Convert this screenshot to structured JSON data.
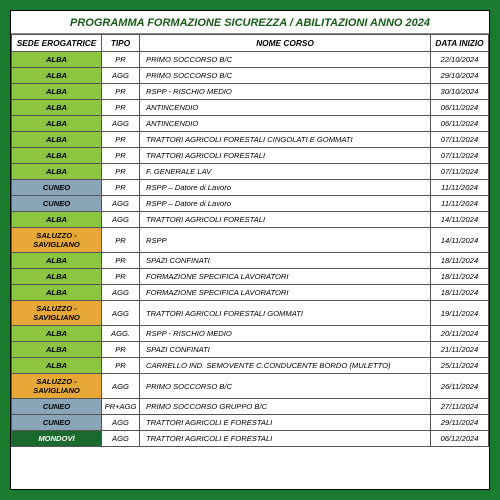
{
  "title": "PROGRAMMA FORMAZIONE SICUREZZA / ABILITAZIONI ANNO 2024",
  "columns": [
    "SEDE EROGATRICE",
    "TIPO",
    "NOME CORSO",
    "DATA INIZIO"
  ],
  "sede_colors": {
    "ALBA": "#8cc640",
    "CUNEO": "#8aa4b8",
    "SALUZZO - SAVIGLIANO": "#e8a838",
    "MONDOVÌ": "#1a6a2e"
  },
  "mondovi_text_color": "#ffffff",
  "rows": [
    {
      "sede": "ALBA",
      "tipo": "PR",
      "nome": "PRIMO SOCCORSO B/C",
      "data": "22/10/2024"
    },
    {
      "sede": "ALBA",
      "tipo": "AGG",
      "nome": "PRIMO SOCCORSO B/C",
      "data": "29/10/2024"
    },
    {
      "sede": "ALBA",
      "tipo": "PR",
      "nome": "RSPP - RISCHIO MEDIO",
      "data": "30/10/2024"
    },
    {
      "sede": "ALBA",
      "tipo": "PR",
      "nome": "ANTINCENDIO",
      "data": "06/11/2024"
    },
    {
      "sede": "ALBA",
      "tipo": "AGG",
      "nome": "ANTINCENDIO",
      "data": "06/11/2024"
    },
    {
      "sede": "ALBA",
      "tipo": "PR",
      "nome": "TRATTORI AGRICOLI FORESTALI CINGOLATI E GOMMATI",
      "data": "07/11/2024"
    },
    {
      "sede": "ALBA",
      "tipo": "PR",
      "nome": "TRATTORI AGRICOLI FORESTALI",
      "data": "07/11/2024"
    },
    {
      "sede": "ALBA",
      "tipo": "PR",
      "nome": "F. GENERALE LAV",
      "data": "07/11/2024"
    },
    {
      "sede": "CUNEO",
      "tipo": "PR",
      "nome": "RSPP – Datore di Lavoro",
      "data": "11/11/2024"
    },
    {
      "sede": "CUNEO",
      "tipo": "AGG",
      "nome": "RSPP – Datore di Lavoro",
      "data": "11/11/2024"
    },
    {
      "sede": "ALBA",
      "tipo": "AGG",
      "nome": "TRATTORI AGRICOLI FORESTALI",
      "data": "14/11/2024"
    },
    {
      "sede": "SALUZZO - SAVIGLIANO",
      "tipo": "PR",
      "nome": "RSPP",
      "data": "14/11/2024"
    },
    {
      "sede": "ALBA",
      "tipo": "PR",
      "nome": "SPAZI CONFINATI",
      "data": "18/11/2024"
    },
    {
      "sede": "ALBA",
      "tipo": "PR",
      "nome": "FORMAZIONE SPECIFICA LAVORATORI",
      "data": "18/11/2024"
    },
    {
      "sede": "ALBA",
      "tipo": "AGG",
      "nome": "FORMAZIONE SPECIFICA LAVORATORI",
      "data": "18/11/2024"
    },
    {
      "sede": "SALUZZO - SAVIGLIANO",
      "tipo": "AGG",
      "nome": "TRATTORI AGRICOLI FORESTALI GOMMATI",
      "data": "19/11/2024"
    },
    {
      "sede": "ALBA",
      "tipo": "AGG.",
      "nome": "RSPP - RISCHIO MEDIO",
      "data": "20/11/2024"
    },
    {
      "sede": "ALBA",
      "tipo": "PR",
      "nome": "SPAZI CONFINATI",
      "data": "21/11/2024"
    },
    {
      "sede": "ALBA",
      "tipo": "PR",
      "nome": "CARRELLO IND. SEMOVENTE C.CONDUCENTE BORDO (MULETTO)",
      "data": "25/11/2024"
    },
    {
      "sede": "SALUZZO - SAVIGLIANO",
      "tipo": "AGG",
      "nome": "PRIMO SOCCORSO B/C",
      "data": "26/11/2024"
    },
    {
      "sede": "CUNEO",
      "tipo": "PR+AGG",
      "nome": "PRIMO SOCCORSO GRUPPO B/C",
      "data": "27/11/2024"
    },
    {
      "sede": "CUNEO",
      "tipo": "AGG",
      "nome": "TRATTORI AGRICOLI E FORESTALI",
      "data": "29/11/2024"
    },
    {
      "sede": "MONDOVÌ",
      "tipo": "AGG",
      "nome": "TRATTORI AGRICOLI E FORESTALI",
      "data": "06/12/2024"
    }
  ]
}
